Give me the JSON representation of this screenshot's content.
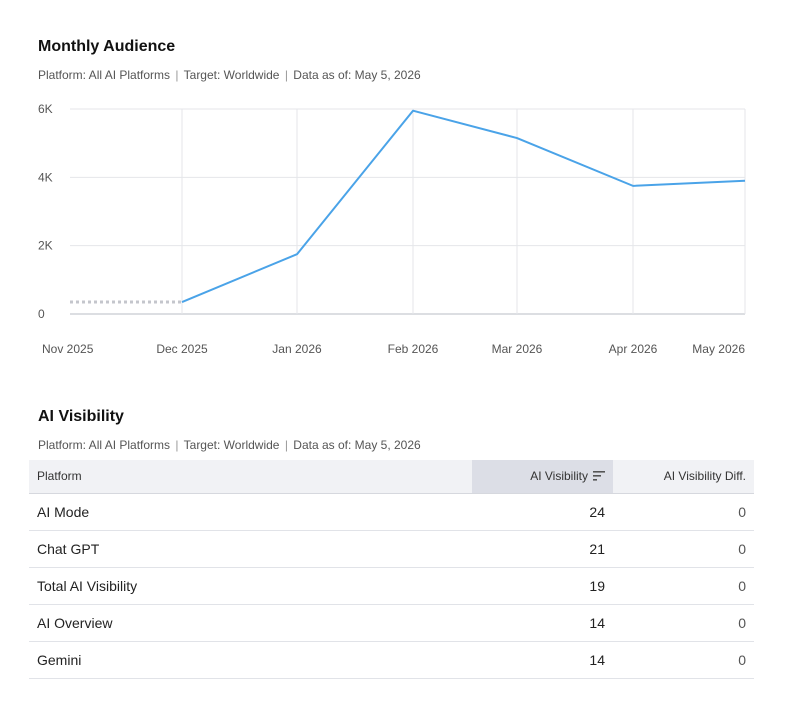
{
  "audience": {
    "title": "Monthly Audience",
    "meta": {
      "platform": "Platform: All AI Platforms",
      "target": "Target: Worldwide",
      "date": "Data as of: May 5, 2026"
    }
  },
  "chart_data": {
    "type": "line",
    "title": "Monthly Audience",
    "xlabel": "",
    "ylabel": "",
    "categories": [
      "Nov 2025",
      "Dec 2025",
      "Jan 2026",
      "Feb 2026",
      "Mar 2026",
      "Apr 2026",
      "May 2026"
    ],
    "y_ticks": [
      "0",
      "2K",
      "4K",
      "6K"
    ],
    "ylim": [
      0,
      6000
    ],
    "grid": true,
    "legend": "none",
    "series": [
      {
        "values": [
          null,
          350,
          1750,
          5950,
          5150,
          3750,
          3900
        ],
        "color": "#4aa3e8"
      },
      {
        "values": [
          350,
          350,
          null,
          null,
          null,
          null,
          null
        ],
        "color": "#c4c6cc",
        "style": "dotted"
      }
    ]
  },
  "visibility": {
    "title": "AI Visibility",
    "meta": {
      "platform": "Platform: All AI Platforms",
      "target": "Target: Worldwide",
      "date": "Data as of: May 5, 2026"
    },
    "columns": {
      "platform": "Platform",
      "visibility": "AI Visibility",
      "diff": "AI Visibility Diff."
    },
    "rows": [
      {
        "platform": "AI Mode",
        "visibility": "24",
        "diff": "0"
      },
      {
        "platform": "Chat GPT",
        "visibility": "21",
        "diff": "0"
      },
      {
        "platform": "Total AI Visibility",
        "visibility": "19",
        "diff": "0"
      },
      {
        "platform": "AI Overview",
        "visibility": "14",
        "diff": "0"
      },
      {
        "platform": "Gemini",
        "visibility": "14",
        "diff": "0"
      }
    ]
  }
}
